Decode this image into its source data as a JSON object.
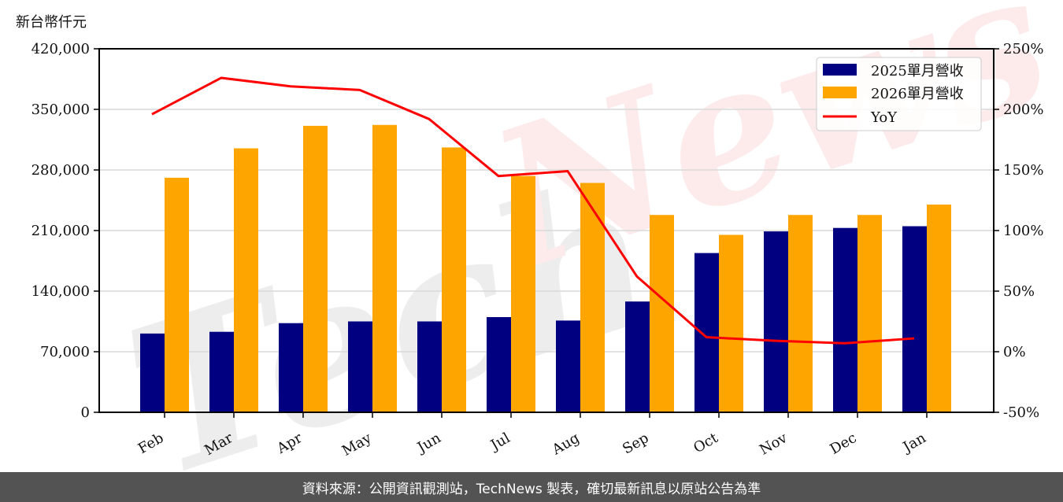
{
  "chart_data": {
    "type": "bar",
    "title": "",
    "ylabel": "新台幣仟元",
    "xlabel": "",
    "categories": [
      "Feb",
      "Mar",
      "Apr",
      "May",
      "Jun",
      "Jul",
      "Aug",
      "Sep",
      "Oct",
      "Nov",
      "Dec",
      "Jan"
    ],
    "series": [
      {
        "name": "2025單月營收",
        "type": "bar",
        "color": "#000080",
        "axis": "left",
        "values": [
          91000,
          93000,
          103000,
          105000,
          105000,
          110000,
          106000,
          128000,
          184000,
          209000,
          213000,
          215000
        ]
      },
      {
        "name": "2026單月營收",
        "type": "bar",
        "color": "#FFA500",
        "axis": "left",
        "values": [
          271000,
          305000,
          331000,
          332000,
          306000,
          273000,
          265000,
          228000,
          205000,
          228000,
          228000,
          240000
        ]
      },
      {
        "name": "YoY",
        "type": "line",
        "color": "#FF0000",
        "axis": "right",
        "values": [
          196,
          226,
          219,
          216,
          192,
          145,
          149,
          62,
          12,
          9,
          7,
          11
        ]
      }
    ],
    "ylim": [
      0,
      420000
    ],
    "y2lim": [
      -50,
      250
    ],
    "yticks": [
      "0",
      "70,000",
      "140,000",
      "210,000",
      "280,000",
      "350,000",
      "420,000"
    ],
    "y2ticks": [
      "-50%",
      "0%",
      "50%",
      "100%",
      "150%",
      "200%",
      "250%"
    ],
    "grid": true,
    "legend_position": "upper right"
  },
  "header": {
    "unit_label": "新台幣仟元"
  },
  "legend": {
    "items": [
      {
        "label": "2025單月營收",
        "color": "#000080",
        "kind": "bar"
      },
      {
        "label": "2026單月營收",
        "color": "#FFA500",
        "kind": "bar"
      },
      {
        "label": "YoY",
        "color": "#FF0000",
        "kind": "line"
      }
    ]
  },
  "watermark": {
    "text": "TechNews"
  },
  "footer": {
    "text": "資料來源：公開資訊觀測站，TechNews 製表，確切最新訊息以原站公告為準"
  },
  "colors": {
    "navy": "#000080",
    "orange": "#FFA500",
    "red": "#FF0000",
    "grid": "#d9d9d9",
    "footer_bg": "#535353"
  }
}
